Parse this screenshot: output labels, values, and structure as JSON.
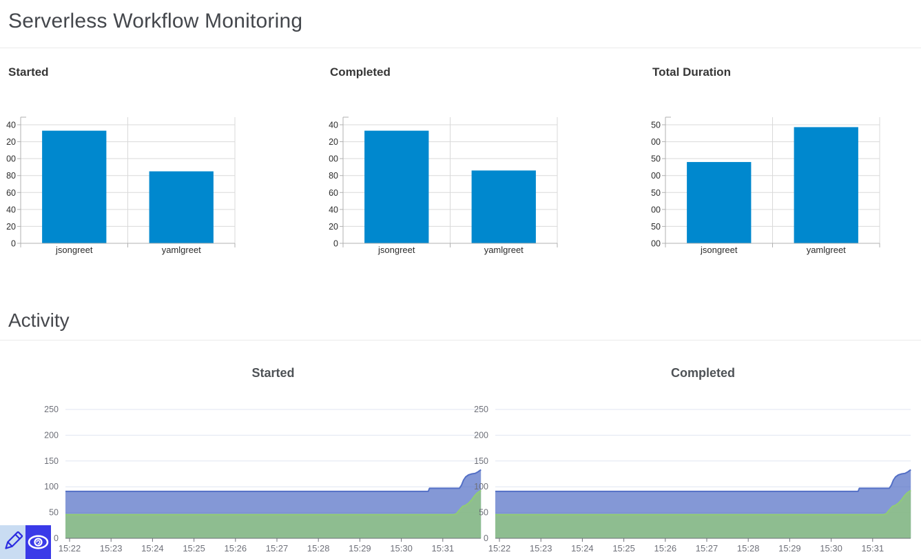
{
  "page": {
    "title": "Serverless Workflow Monitoring"
  },
  "activity_section": {
    "title": "Activity"
  },
  "overlay_toolbar": {
    "pencil_bg": "#c9dcf2",
    "pencil_color": "#2b2be0",
    "eye_bg": "#3a3ae8",
    "eye_color": "#ffffff"
  },
  "chart_data": [
    {
      "id": "summary-started",
      "type": "bar",
      "title": "Started",
      "categories": [
        "jsongreet",
        "yamlgreet"
      ],
      "values": [
        133,
        85
      ],
      "ylim": [
        0,
        140
      ],
      "yticks": [
        {
          "value": 0,
          "label": "0"
        },
        {
          "value": 20,
          "label": "20"
        },
        {
          "value": 40,
          "label": "40"
        },
        {
          "value": 60,
          "label": "60"
        },
        {
          "value": 80,
          "label": "80"
        },
        {
          "value": 100,
          "label": "00"
        },
        {
          "value": 120,
          "label": "20"
        },
        {
          "value": 140,
          "label": "40"
        }
      ],
      "tick_label_note": "y tick labels appear clipped to their last two digits in the source UI",
      "bar_color": "#0088ce",
      "grid_color": "#d9d9d9",
      "axis_color": "#b0b0b0",
      "label_color": "#2b2b2b"
    },
    {
      "id": "summary-completed",
      "type": "bar",
      "title": "Completed",
      "categories": [
        "jsongreet",
        "yamlgreet"
      ],
      "values": [
        133,
        86
      ],
      "ylim": [
        0,
        140
      ],
      "yticks": [
        {
          "value": 0,
          "label": "0"
        },
        {
          "value": 20,
          "label": "20"
        },
        {
          "value": 40,
          "label": "40"
        },
        {
          "value": 60,
          "label": "60"
        },
        {
          "value": 80,
          "label": "80"
        },
        {
          "value": 100,
          "label": "00"
        },
        {
          "value": 120,
          "label": "20"
        },
        {
          "value": 140,
          "label": "40"
        }
      ],
      "tick_label_note": "y tick labels appear clipped to their last two digits in the source UI",
      "bar_color": "#0088ce",
      "grid_color": "#d9d9d9",
      "axis_color": "#b0b0b0",
      "label_color": "#2b2b2b"
    },
    {
      "id": "summary-total-duration",
      "type": "bar",
      "title": "Total Duration",
      "categories": [
        "jsongreet",
        "yamlgreet"
      ],
      "values": [
        240,
        343
      ],
      "ylim": [
        0,
        350
      ],
      "yticks": [
        {
          "value": 0,
          "label": "00"
        },
        {
          "value": 50,
          "label": "50"
        },
        {
          "value": 100,
          "label": "00"
        },
        {
          "value": 150,
          "label": "50"
        },
        {
          "value": 200,
          "label": "00"
        },
        {
          "value": 250,
          "label": "50"
        },
        {
          "value": 300,
          "label": "00"
        },
        {
          "value": 350,
          "label": "50"
        }
      ],
      "tick_label_note": "y tick labels appear clipped to their last two digits in the source UI",
      "bar_color": "#0088ce",
      "grid_color": "#d9d9d9",
      "axis_color": "#b0b0b0",
      "label_color": "#2b2b2b"
    },
    {
      "id": "activity-started",
      "type": "area",
      "title": "Started",
      "x_tick_labels": [
        "15:22",
        "15:23",
        "15:24",
        "15:25",
        "15:26",
        "15:27",
        "15:28",
        "15:29",
        "15:30",
        "15:31"
      ],
      "x_unit": "minutes since 15:22",
      "ylim": [
        0,
        250
      ],
      "yticks": [
        0,
        50,
        100,
        150,
        200,
        250
      ],
      "grid_color": "#E0E6F1",
      "axis_color": "#6E7079",
      "label_color": "#6E7079",
      "series": [
        {
          "name": "series-blue",
          "line_color": "#5470C6",
          "fill_color": "rgba(84,112,198,0.72)",
          "points": [
            [
              0,
              91
            ],
            [
              8.65,
              91
            ],
            [
              8.68,
              97
            ],
            [
              9.4,
              97
            ],
            [
              9.45,
              103
            ],
            [
              9.5,
              113
            ],
            [
              9.55,
              119
            ],
            [
              9.62,
              123
            ],
            [
              9.7,
              125
            ],
            [
              9.78,
              126
            ],
            [
              9.85,
              129
            ],
            [
              9.92,
              133
            ]
          ]
        },
        {
          "name": "series-green",
          "line_color": "#91CC75",
          "fill_color": "rgba(145,204,117,0.72)",
          "points": [
            [
              0,
              46
            ],
            [
              9.27,
              46
            ],
            [
              9.33,
              48
            ],
            [
              9.4,
              55
            ],
            [
              9.48,
              62
            ],
            [
              9.55,
              64
            ],
            [
              9.62,
              68
            ],
            [
              9.7,
              75
            ],
            [
              9.76,
              82
            ],
            [
              9.83,
              88
            ],
            [
              9.92,
              93
            ]
          ]
        }
      ]
    },
    {
      "id": "activity-completed",
      "type": "area",
      "title": "Completed",
      "x_tick_labels": [
        "15:22",
        "15:23",
        "15:24",
        "15:25",
        "15:26",
        "15:27",
        "15:28",
        "15:29",
        "15:30",
        "15:31"
      ],
      "x_unit": "minutes since 15:22",
      "ylim": [
        0,
        250
      ],
      "yticks": [
        0,
        50,
        100,
        150,
        200,
        250
      ],
      "grid_color": "#E0E6F1",
      "axis_color": "#6E7079",
      "label_color": "#6E7079",
      "series": [
        {
          "name": "series-blue",
          "line_color": "#5470C6",
          "fill_color": "rgba(84,112,198,0.72)",
          "points": [
            [
              0,
              91
            ],
            [
              8.65,
              91
            ],
            [
              8.68,
              97
            ],
            [
              9.4,
              97
            ],
            [
              9.45,
              103
            ],
            [
              9.5,
              113
            ],
            [
              9.55,
              119
            ],
            [
              9.62,
              123
            ],
            [
              9.7,
              125
            ],
            [
              9.78,
              126
            ],
            [
              9.85,
              129
            ],
            [
              9.92,
              133
            ]
          ]
        },
        {
          "name": "series-green",
          "line_color": "#91CC75",
          "fill_color": "rgba(145,204,117,0.72)",
          "points": [
            [
              0,
              46
            ],
            [
              9.27,
              46
            ],
            [
              9.33,
              48
            ],
            [
              9.4,
              55
            ],
            [
              9.48,
              62
            ],
            [
              9.55,
              64
            ],
            [
              9.62,
              68
            ],
            [
              9.7,
              75
            ],
            [
              9.76,
              82
            ],
            [
              9.83,
              88
            ],
            [
              9.92,
              93
            ]
          ]
        }
      ]
    }
  ]
}
